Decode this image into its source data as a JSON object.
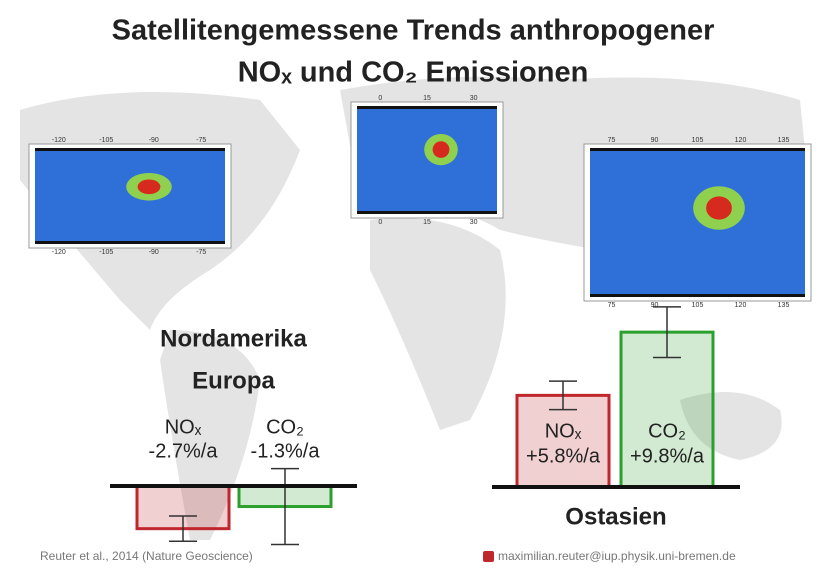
{
  "title_lines": [
    "Satellitengemessene Trends anthropogener",
    "NOₓ und CO₂ Emissionen"
  ],
  "maps": [
    {
      "xticks": [
        -120,
        -105,
        -90,
        -75
      ]
    },
    {
      "xticks": [
        0,
        15,
        30
      ]
    },
    {
      "xticks": [
        75,
        90,
        105,
        120,
        135
      ]
    }
  ],
  "chart_data": [
    {
      "type": "bar",
      "title_lines": [
        "Nordamerika",
        "Europa"
      ],
      "categories": [
        "NOₓ",
        "CO₂"
      ],
      "values": [
        -2.7,
        -1.3
      ],
      "value_labels": [
        "-2.7%/a",
        "-1.3%/a"
      ],
      "errors": [
        0.8,
        2.4
      ],
      "colors": [
        "#c0272d",
        "#2ca02c"
      ]
    },
    {
      "type": "bar",
      "title_lines": [
        "Ostasien"
      ],
      "categories": [
        "NOₓ",
        "CO₂"
      ],
      "values": [
        5.8,
        9.8
      ],
      "value_labels": [
        "+5.8%/a",
        "+9.8%/a"
      ],
      "errors": [
        0.9,
        1.6
      ],
      "colors": [
        "#c0272d",
        "#2ca02c"
      ]
    }
  ],
  "footer": {
    "citation": "Reuter et al., 2014 (Nature Geoscience)",
    "email": "maximilian.reuter@iup.physik.uni-bremen.de"
  }
}
